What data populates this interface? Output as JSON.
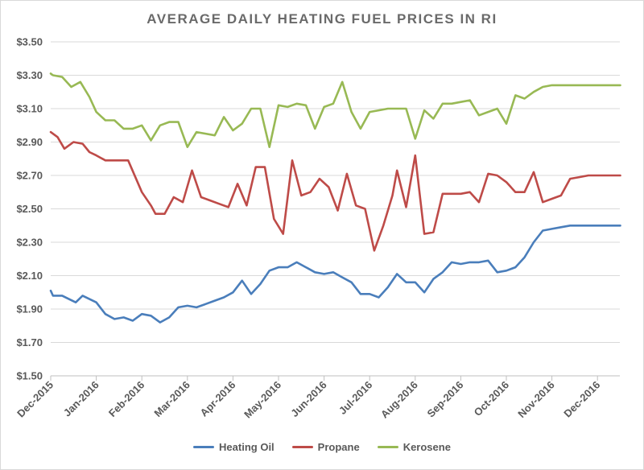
{
  "chart_data": {
    "type": "line",
    "title": "AVERAGE DAILY HEATING FUEL PRICES IN RI",
    "xlabel": "",
    "ylabel": "",
    "ylim": [
      1.5,
      3.5
    ],
    "yticks": [
      "$1.50",
      "$1.70",
      "$1.90",
      "$2.10",
      "$2.30",
      "$2.50",
      "$2.70",
      "$2.90",
      "$3.10",
      "$3.30",
      "$3.50"
    ],
    "ytick_values": [
      1.5,
      1.7,
      1.9,
      2.1,
      2.3,
      2.5,
      2.7,
      2.9,
      3.1,
      3.3,
      3.5
    ],
    "categories": [
      "Dec-2015",
      "Jan-2016",
      "Feb-2016",
      "Mar-2016",
      "Apr-2016",
      "May-2016",
      "Jun-2016",
      "Jul-2016",
      "Aug-2016",
      "Sep-2016",
      "Oct-2016",
      "Nov-2016",
      "Dec-2016"
    ],
    "xlim_months": [
      0,
      12.5
    ],
    "legend_position": "bottom",
    "series": [
      {
        "name": "Heating Oil",
        "color": "#4a7ebb",
        "x": [
          0,
          0.05,
          0.25,
          0.4,
          0.55,
          0.7,
          1.0,
          1.2,
          1.4,
          1.6,
          1.8,
          2.0,
          2.2,
          2.4,
          2.6,
          2.8,
          3.0,
          3.2,
          3.4,
          3.6,
          3.8,
          4.0,
          4.2,
          4.4,
          4.6,
          4.8,
          5.0,
          5.2,
          5.4,
          5.6,
          5.8,
          6.0,
          6.2,
          6.4,
          6.6,
          6.8,
          7.0,
          7.2,
          7.4,
          7.6,
          7.8,
          8.0,
          8.2,
          8.4,
          8.6,
          8.8,
          9.0,
          9.2,
          9.4,
          9.6,
          9.8,
          10.0,
          10.2,
          10.4,
          10.6,
          10.8,
          11.0,
          11.2,
          11.4,
          11.6,
          11.8,
          12.0,
          12.2,
          12.4,
          12.5
        ],
        "values": [
          2.01,
          1.98,
          1.98,
          1.96,
          1.94,
          1.98,
          1.94,
          1.87,
          1.84,
          1.85,
          1.83,
          1.87,
          1.86,
          1.82,
          1.85,
          1.91,
          1.92,
          1.91,
          1.93,
          1.95,
          1.97,
          2.0,
          2.07,
          1.99,
          2.05,
          2.13,
          2.15,
          2.15,
          2.18,
          2.15,
          2.12,
          2.11,
          2.12,
          2.09,
          2.06,
          1.99,
          1.99,
          1.97,
          2.03,
          2.11,
          2.06,
          2.06,
          2.0,
          2.08,
          2.12,
          2.18,
          2.17,
          2.18,
          2.18,
          2.19,
          2.12,
          2.13,
          2.15,
          2.21,
          2.3,
          2.37,
          2.38,
          2.39,
          2.4,
          2.4,
          2.4,
          2.4,
          2.4,
          2.4,
          2.4
        ]
      },
      {
        "name": "Propane",
        "color": "#be4b48",
        "x": [
          0,
          0.15,
          0.3,
          0.5,
          0.7,
          0.85,
          1.0,
          1.2,
          1.4,
          1.6,
          1.7,
          2.0,
          2.2,
          2.3,
          2.5,
          2.7,
          2.9,
          3.1,
          3.3,
          3.5,
          3.7,
          3.9,
          4.1,
          4.3,
          4.5,
          4.7,
          4.9,
          5.1,
          5.3,
          5.5,
          5.7,
          5.9,
          6.1,
          6.3,
          6.5,
          6.7,
          6.9,
          7.1,
          7.3,
          7.5,
          7.6,
          7.8,
          8.0,
          8.2,
          8.4,
          8.6,
          8.8,
          9.0,
          9.2,
          9.4,
          9.6,
          9.8,
          10.0,
          10.2,
          10.4,
          10.6,
          10.8,
          11.0,
          11.2,
          11.4,
          11.6,
          11.8,
          12.0,
          12.2,
          12.4,
          12.5
        ],
        "values": [
          2.96,
          2.93,
          2.86,
          2.9,
          2.89,
          2.84,
          2.82,
          2.79,
          2.79,
          2.79,
          2.79,
          2.6,
          2.52,
          2.47,
          2.47,
          2.57,
          2.54,
          2.73,
          2.57,
          2.55,
          2.53,
          2.51,
          2.65,
          2.52,
          2.75,
          2.75,
          2.44,
          2.35,
          2.79,
          2.58,
          2.6,
          2.68,
          2.63,
          2.49,
          2.71,
          2.52,
          2.5,
          2.25,
          2.4,
          2.58,
          2.73,
          2.51,
          2.82,
          2.35,
          2.36,
          2.59,
          2.59,
          2.59,
          2.6,
          2.54,
          2.71,
          2.7,
          2.66,
          2.6,
          2.6,
          2.72,
          2.54,
          2.56,
          2.58,
          2.68,
          2.69,
          2.7,
          2.7,
          2.7,
          2.7,
          2.7
        ]
      },
      {
        "name": "Kerosene",
        "color": "#98b954",
        "x": [
          0,
          0.05,
          0.25,
          0.45,
          0.65,
          0.85,
          1.0,
          1.2,
          1.4,
          1.6,
          1.8,
          2.0,
          2.2,
          2.4,
          2.6,
          2.8,
          3.0,
          3.2,
          3.4,
          3.6,
          3.8,
          4.0,
          4.2,
          4.4,
          4.6,
          4.8,
          5.0,
          5.2,
          5.4,
          5.6,
          5.8,
          6.0,
          6.2,
          6.4,
          6.6,
          6.8,
          7.0,
          7.2,
          7.4,
          7.6,
          7.8,
          8.0,
          8.2,
          8.4,
          8.6,
          8.8,
          9.0,
          9.2,
          9.4,
          9.6,
          9.8,
          10.0,
          10.2,
          10.4,
          10.6,
          10.8,
          11.0,
          11.2,
          11.4,
          11.6,
          11.8,
          12.0,
          12.2,
          12.4,
          12.5
        ],
        "values": [
          3.31,
          3.3,
          3.29,
          3.23,
          3.26,
          3.17,
          3.08,
          3.03,
          3.03,
          2.98,
          2.98,
          3.0,
          2.91,
          3.0,
          3.02,
          3.02,
          2.87,
          2.96,
          2.95,
          2.94,
          3.05,
          2.97,
          3.01,
          3.1,
          3.1,
          2.87,
          3.12,
          3.11,
          3.13,
          3.12,
          2.98,
          3.11,
          3.13,
          3.26,
          3.08,
          2.98,
          3.08,
          3.09,
          3.1,
          3.1,
          3.1,
          2.92,
          3.09,
          3.04,
          3.13,
          3.13,
          3.14,
          3.15,
          3.06,
          3.08,
          3.1,
          3.01,
          3.18,
          3.16,
          3.2,
          3.23,
          3.24,
          3.24,
          3.24,
          3.24,
          3.24,
          3.24,
          3.24,
          3.24,
          3.24
        ]
      }
    ]
  }
}
